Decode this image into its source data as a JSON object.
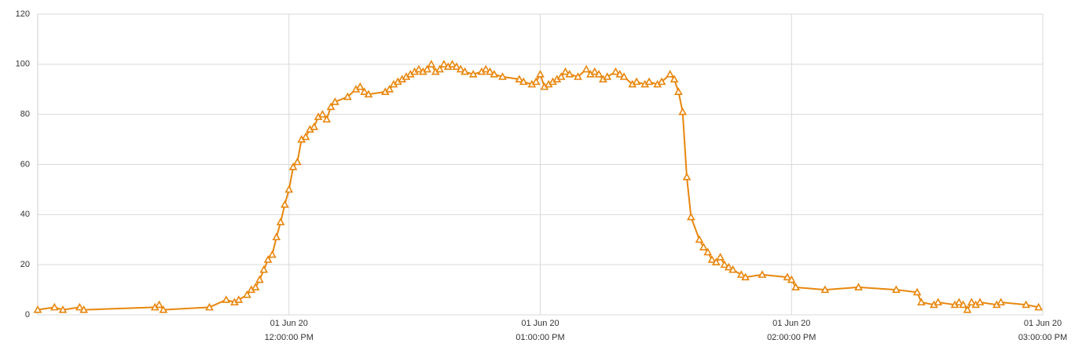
{
  "chart_data": {
    "type": "line",
    "color": "#e8860c",
    "marker": "triangle",
    "grid": true,
    "x": [
      "2020-06-01T11:00",
      "2020-06-01T11:04",
      "2020-06-01T11:06",
      "2020-06-01T11:10",
      "2020-06-01T11:11",
      "2020-06-01T11:28",
      "2020-06-01T11:29",
      "2020-06-01T11:30",
      "2020-06-01T11:41",
      "2020-06-01T11:45",
      "2020-06-01T11:47",
      "2020-06-01T11:48",
      "2020-06-01T11:50",
      "2020-06-01T11:51",
      "2020-06-01T11:52",
      "2020-06-01T11:53",
      "2020-06-01T11:54",
      "2020-06-01T11:55",
      "2020-06-01T11:56",
      "2020-06-01T11:57",
      "2020-06-01T11:58",
      "2020-06-01T11:59",
      "2020-06-01T12:00",
      "2020-06-01T12:01",
      "2020-06-01T12:02",
      "2020-06-01T12:03",
      "2020-06-01T12:04",
      "2020-06-01T12:05",
      "2020-06-01T12:06",
      "2020-06-01T12:07",
      "2020-06-01T12:08",
      "2020-06-01T12:09",
      "2020-06-01T12:10",
      "2020-06-01T12:11",
      "2020-06-01T12:14",
      "2020-06-01T12:16",
      "2020-06-01T12:17",
      "2020-06-01T12:18",
      "2020-06-01T12:19",
      "2020-06-01T12:23",
      "2020-06-01T12:24",
      "2020-06-01T12:25",
      "2020-06-01T12:26",
      "2020-06-01T12:27",
      "2020-06-01T12:28",
      "2020-06-01T12:29",
      "2020-06-01T12:30",
      "2020-06-01T12:31",
      "2020-06-01T12:32",
      "2020-06-01T12:33",
      "2020-06-01T12:34",
      "2020-06-01T12:35",
      "2020-06-01T12:36",
      "2020-06-01T12:37",
      "2020-06-01T12:38",
      "2020-06-01T12:39",
      "2020-06-01T12:40",
      "2020-06-01T12:41",
      "2020-06-01T12:42",
      "2020-06-01T12:44",
      "2020-06-01T12:46",
      "2020-06-01T12:47",
      "2020-06-01T12:48",
      "2020-06-01T12:49",
      "2020-06-01T12:51",
      "2020-06-01T12:55",
      "2020-06-01T12:56",
      "2020-06-01T12:58",
      "2020-06-01T12:59",
      "2020-06-01T13:00",
      "2020-06-01T13:01",
      "2020-06-01T13:02",
      "2020-06-01T13:03",
      "2020-06-01T13:04",
      "2020-06-01T13:05",
      "2020-06-01T13:06",
      "2020-06-01T13:07",
      "2020-06-01T13:09",
      "2020-06-01T13:11",
      "2020-06-01T13:12",
      "2020-06-01T13:13",
      "2020-06-01T13:14",
      "2020-06-01T13:15",
      "2020-06-01T13:16",
      "2020-06-01T13:18",
      "2020-06-01T13:19",
      "2020-06-01T13:20",
      "2020-06-01T13:22",
      "2020-06-01T13:23",
      "2020-06-01T13:25",
      "2020-06-01T13:26",
      "2020-06-01T13:28",
      "2020-06-01T13:29",
      "2020-06-01T13:31",
      "2020-06-01T13:32",
      "2020-06-01T13:33",
      "2020-06-01T13:34",
      "2020-06-01T13:35",
      "2020-06-01T13:36",
      "2020-06-01T13:38",
      "2020-06-01T13:39",
      "2020-06-01T13:40",
      "2020-06-01T13:41",
      "2020-06-01T13:42",
      "2020-06-01T13:43",
      "2020-06-01T13:44",
      "2020-06-01T13:45",
      "2020-06-01T13:46",
      "2020-06-01T13:48",
      "2020-06-01T13:49",
      "2020-06-01T13:53",
      "2020-06-01T13:59",
      "2020-06-01T14:00",
      "2020-06-01T14:01",
      "2020-06-01T14:08",
      "2020-06-01T14:16",
      "2020-06-01T14:25",
      "2020-06-01T14:30",
      "2020-06-01T14:31",
      "2020-06-01T14:34",
      "2020-06-01T14:35",
      "2020-06-01T14:39",
      "2020-06-01T14:40",
      "2020-06-01T14:41",
      "2020-06-01T14:42",
      "2020-06-01T14:43",
      "2020-06-01T14:44",
      "2020-06-01T14:45",
      "2020-06-01T14:49",
      "2020-06-01T14:50",
      "2020-06-01T14:56",
      "2020-06-01T14:59"
    ],
    "values": [
      2,
      3,
      2,
      3,
      2,
      3,
      4,
      2,
      3,
      6,
      5,
      6,
      8,
      10,
      11,
      14,
      18,
      22,
      24,
      31,
      37,
      44,
      50,
      59,
      61,
      70,
      71,
      74,
      75,
      79,
      80,
      78,
      83,
      85,
      87,
      90,
      91,
      89,
      88,
      89,
      90,
      92,
      93,
      94,
      95,
      96,
      97,
      98,
      97,
      98,
      100,
      97,
      98,
      100,
      99,
      100,
      99,
      98,
      97,
      96,
      97,
      98,
      97,
      96,
      95,
      94,
      93,
      92,
      93,
      96,
      91,
      92,
      93,
      94,
      95,
      97,
      96,
      95,
      98,
      96,
      97,
      96,
      94,
      95,
      97,
      96,
      95,
      92,
      93,
      92,
      93,
      92,
      93,
      96,
      94,
      89,
      81,
      55,
      39,
      30,
      27,
      25,
      22,
      21,
      23,
      20,
      19,
      18,
      16,
      15,
      16,
      15,
      14,
      11,
      10,
      11,
      10,
      9,
      5,
      4,
      5,
      4,
      5,
      4,
      2,
      5,
      4,
      5,
      4,
      5,
      4,
      3
    ],
    "xlim": [
      "2020-06-01T11:00",
      "2020-06-01T15:00"
    ],
    "xticks": [
      {
        "value": "2020-06-01T12:00",
        "label": [
          "01 Jun 20",
          "12:00:00 PM"
        ]
      },
      {
        "value": "2020-06-01T13:00",
        "label": [
          "01 Jun 20",
          "01:00:00 PM"
        ]
      },
      {
        "value": "2020-06-01T14:00",
        "label": [
          "01 Jun 20",
          "02:00:00 PM"
        ]
      },
      {
        "value": "2020-06-01T15:00",
        "label": [
          "01 Jun 20",
          "03:00:00 PM"
        ]
      }
    ],
    "ylim": [
      0,
      120
    ],
    "yticks": [
      0,
      20,
      40,
      60,
      80,
      100,
      120
    ]
  }
}
